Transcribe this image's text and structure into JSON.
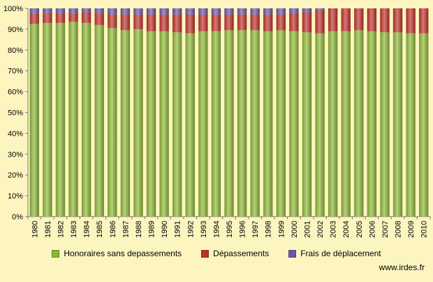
{
  "chart_data": {
    "type": "bar",
    "stacked": true,
    "percent_stacked": true,
    "categories": [
      "1980",
      "1981",
      "1982",
      "1983",
      "1984",
      "1985",
      "1986",
      "1987",
      "1988",
      "1989",
      "1990",
      "1991",
      "1992",
      "1993",
      "1994",
      "1995",
      "1996",
      "1997",
      "1998",
      "1999",
      "2000",
      "2001",
      "2002",
      "2003",
      "2004",
      "2005",
      "2006",
      "2007",
      "2008",
      "2009",
      "2010"
    ],
    "series": [
      {
        "name": "Honoraires sans depassements",
        "color": "#8db734",
        "values": [
          92.5,
          93,
          93,
          93.5,
          93,
          92,
          90.5,
          89.5,
          90,
          89,
          89,
          88.5,
          88,
          89,
          89,
          89.5,
          89.5,
          89.5,
          89,
          89.5,
          89,
          88.5,
          88,
          89,
          89,
          89.5,
          89,
          88.5,
          88.5,
          88,
          88
        ]
      },
      {
        "name": "Dépassements",
        "color": "#c0302a",
        "values": [
          5,
          4.5,
          4.5,
          4,
          5,
          5.5,
          6.5,
          7.5,
          7,
          8,
          8,
          8.5,
          9,
          8,
          8,
          7.5,
          7.5,
          7.5,
          8,
          7.5,
          8.5,
          9.5,
          11,
          11,
          11,
          10.5,
          11,
          11.5,
          11.5,
          12,
          12
        ]
      },
      {
        "name": "Frais de déplacement",
        "color": "#6b55a8",
        "values": [
          2.5,
          2.5,
          2.5,
          2.5,
          2,
          2.5,
          3,
          3,
          3,
          3,
          3,
          3,
          3,
          3,
          3,
          3,
          3,
          3,
          3,
          3,
          2.5,
          2,
          1,
          0,
          0,
          0,
          0,
          0,
          0,
          0,
          0
        ]
      }
    ],
    "ylim": [
      0,
      100
    ],
    "yticks": [
      "0%",
      "10%",
      "20%",
      "30%",
      "40%",
      "50%",
      "60%",
      "70%",
      "80%",
      "90%",
      "100%"
    ],
    "grid": false,
    "legend_position": "bottom"
  },
  "source_text": "www.irdes.fr"
}
